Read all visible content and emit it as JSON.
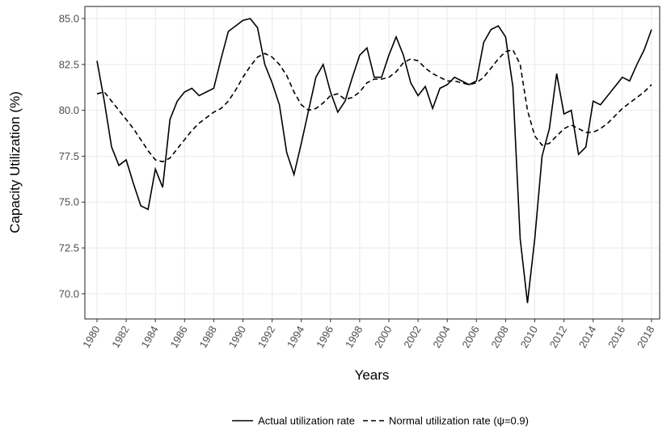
{
  "chart_data": {
    "type": "line",
    "x_label": "Years",
    "y_label": "Capacity Utilization (%)",
    "x": [
      1980,
      1980.5,
      1981,
      1981.5,
      1982,
      1982.5,
      1983,
      1983.5,
      1984,
      1984.5,
      1985,
      1985.5,
      1986,
      1986.5,
      1987,
      1987.5,
      1988,
      1988.5,
      1989,
      1989.5,
      1990,
      1990.5,
      1991,
      1991.5,
      1992,
      1992.5,
      1993,
      1993.5,
      1994,
      1994.5,
      1995,
      1995.5,
      1996,
      1996.5,
      1997,
      1997.5,
      1998,
      1998.5,
      1999,
      1999.5,
      2000,
      2000.5,
      2001,
      2001.5,
      2002,
      2002.5,
      2003,
      2003.5,
      2004,
      2004.5,
      2005,
      2005.5,
      2006,
      2006.5,
      2007,
      2007.5,
      2008,
      2008.5,
      2009,
      2009.5,
      2010,
      2010.5,
      2011,
      2011.5,
      2012,
      2012.5,
      2013,
      2013.5,
      2014,
      2014.5,
      2015,
      2015.5,
      2016,
      2016.5,
      2017,
      2017.5,
      2018
    ],
    "series": [
      {
        "name": "Actual utilization rate",
        "color": "#000000",
        "dash": "solid",
        "values": [
          82.7,
          80.5,
          78.0,
          77.0,
          77.3,
          76.0,
          74.8,
          74.6,
          76.8,
          75.8,
          79.5,
          80.5,
          81.0,
          81.2,
          80.8,
          81.0,
          81.2,
          82.8,
          84.3,
          84.6,
          84.9,
          85.0,
          84.5,
          82.5,
          81.5,
          80.3,
          77.7,
          76.5,
          78.2,
          80.0,
          81.8,
          82.5,
          81.0,
          79.9,
          80.5,
          81.8,
          83.0,
          83.4,
          81.8,
          81.8,
          83.0,
          84.0,
          83.0,
          81.5,
          80.8,
          81.3,
          80.1,
          81.2,
          81.4,
          81.8,
          81.6,
          81.4,
          81.6,
          83.7,
          84.4,
          84.6,
          84.0,
          81.3,
          73.0,
          69.5,
          73.0,
          77.5,
          79.0,
          82.0,
          79.8,
          80.0,
          77.6,
          78.0,
          80.5,
          80.3,
          80.8,
          81.3,
          81.8,
          81.6,
          82.5,
          83.3,
          84.4
        ]
      },
      {
        "name": "Normal utilization rate (ψ=0.9)",
        "color": "#000000",
        "dash": "dashed",
        "values": [
          80.9,
          81.0,
          80.5,
          80.0,
          79.5,
          79.0,
          78.4,
          77.8,
          77.3,
          77.2,
          77.4,
          77.9,
          78.4,
          78.9,
          79.3,
          79.6,
          79.9,
          80.1,
          80.5,
          81.1,
          81.8,
          82.4,
          82.9,
          83.1,
          82.9,
          82.5,
          81.9,
          81.0,
          80.3,
          80.0,
          80.1,
          80.4,
          80.8,
          80.9,
          80.6,
          80.7,
          81.0,
          81.5,
          81.7,
          81.7,
          81.8,
          82.1,
          82.6,
          82.8,
          82.7,
          82.3,
          82.0,
          81.8,
          81.6,
          81.6,
          81.5,
          81.4,
          81.5,
          81.8,
          82.3,
          82.8,
          83.2,
          83.3,
          82.5,
          80.0,
          78.6,
          78.1,
          78.2,
          78.6,
          79.0,
          79.2,
          79.0,
          78.8,
          78.8,
          79.0,
          79.3,
          79.7,
          80.1,
          80.4,
          80.7,
          81.0,
          81.4
        ]
      }
    ],
    "xlim": [
      1979.17,
      2018.56
    ],
    "ylim": [
      68.63,
      85.66
    ],
    "xticks": [
      1980,
      1982,
      1984,
      1986,
      1988,
      1990,
      1992,
      1994,
      1996,
      1998,
      2000,
      2002,
      2004,
      2006,
      2008,
      2010,
      2012,
      2014,
      2016,
      2018
    ],
    "yticks": [
      {
        "value": 70,
        "label": "70.0"
      },
      72.5,
      {
        "value": 75,
        "label": "75.0"
      },
      77.5,
      {
        "value": 80,
        "label": "80.0"
      },
      82.5,
      {
        "value": 85,
        "label": "85.0"
      }
    ],
    "grid": true,
    "legend": "bottom"
  }
}
